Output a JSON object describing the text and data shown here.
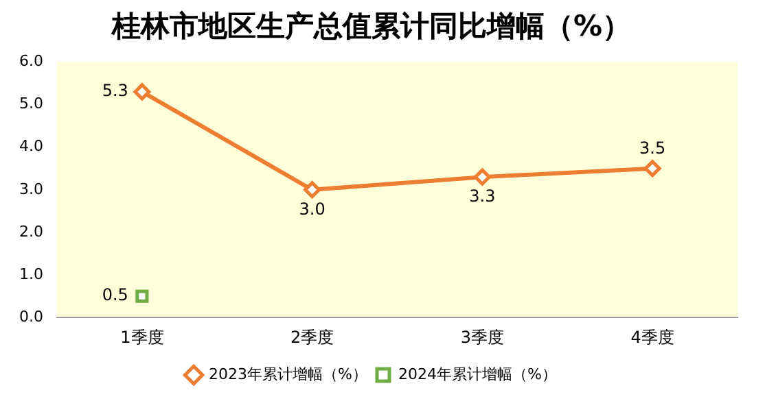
{
  "chart_data": {
    "type": "line",
    "title": "桂林市地区生产总值累计同比增幅（%）",
    "categories": [
      "1季度",
      "2季度",
      "3季度",
      "4季度"
    ],
    "series": [
      {
        "name": "2023年累计增幅（%）",
        "color": "#ed7d31",
        "values": [
          5.3,
          3.0,
          3.3,
          3.5
        ],
        "value_labels": [
          "5.3",
          "3.0",
          "3.3",
          "3.5"
        ],
        "marker": "diamond"
      },
      {
        "name": "2024年累计增幅（%）",
        "color": "#70ad47",
        "values": [
          0.5,
          null,
          null,
          null
        ],
        "value_labels": [
          "0.5",
          null,
          null,
          null
        ],
        "marker": "square"
      }
    ],
    "ylim": [
      0,
      6
    ],
    "yticks": [
      {
        "value": 0,
        "label": "0.0"
      },
      {
        "value": 1,
        "label": "1.0"
      },
      {
        "value": 2,
        "label": "2.0"
      },
      {
        "value": 3,
        "label": "3.0"
      },
      {
        "value": 4,
        "label": "4.0"
      },
      {
        "value": 5,
        "label": "5.0"
      },
      {
        "value": 6,
        "label": "6.0"
      }
    ],
    "grid": false,
    "legend": "bottom"
  }
}
